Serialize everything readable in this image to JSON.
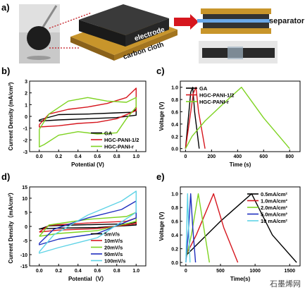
{
  "panel_labels": {
    "a": "a)",
    "b": "b)",
    "c": "c)",
    "d": "d)",
    "e": "e)"
  },
  "panel_a": {
    "electrode_label": "electrode",
    "carbon_cloth_label": "carbon cloth",
    "separator_label": "separator"
  },
  "watermark": "石墨烯网",
  "chart_data": [
    {
      "panel": "b",
      "type": "line",
      "xlabel": "Potential (V)",
      "ylabel": "Current Density (mA/cm²)",
      "xlim": [
        -0.1,
        1.1
      ],
      "ylim": [
        -3,
        3
      ],
      "xticks": [
        "0.0",
        "0.2",
        "0.4",
        "0.6",
        "0.8",
        "1.0"
      ],
      "yticks": [
        "-3",
        "-2",
        "-1",
        "0",
        "1",
        "2",
        "3"
      ],
      "legend_position": "bottom-right",
      "series": [
        {
          "name": "GA",
          "color": "#000000",
          "upper": [
            [
              0,
              -0.3
            ],
            [
              0.2,
              0.15
            ],
            [
              0.5,
              0.2
            ],
            [
              0.8,
              0.3
            ],
            [
              0.95,
              0.35
            ],
            [
              1.0,
              0.6
            ]
          ],
          "lower": [
            [
              1.0,
              0.1
            ],
            [
              0.8,
              -0.1
            ],
            [
              0.5,
              -0.2
            ],
            [
              0.2,
              -0.3
            ],
            [
              0,
              -0.4
            ]
          ]
        },
        {
          "name": "HGC-PANI-1/2",
          "color": "#d6161e",
          "upper": [
            [
              0,
              -0.7
            ],
            [
              0.1,
              0.2
            ],
            [
              0.3,
              0.6
            ],
            [
              0.5,
              0.8
            ],
            [
              0.7,
              1.1
            ],
            [
              0.9,
              1.6
            ],
            [
              1.0,
              2.4
            ]
          ],
          "lower": [
            [
              1.0,
              0.5
            ],
            [
              0.8,
              -0.2
            ],
            [
              0.6,
              -0.5
            ],
            [
              0.4,
              -0.6
            ],
            [
              0.2,
              -0.8
            ],
            [
              0,
              -0.9
            ]
          ]
        },
        {
          "name": "HGC-PANI-r",
          "color": "#7ed321",
          "upper": [
            [
              0,
              -1.1
            ],
            [
              0.1,
              0.2
            ],
            [
              0.3,
              1.3
            ],
            [
              0.5,
              1.6
            ],
            [
              0.7,
              1.3
            ],
            [
              0.9,
              1.2
            ],
            [
              1.0,
              1.6
            ]
          ],
          "lower": [
            [
              1.0,
              0.8
            ],
            [
              0.9,
              -0.2
            ],
            [
              0.8,
              -1.4
            ],
            [
              0.6,
              -1.5
            ],
            [
              0.4,
              -1.3
            ],
            [
              0.2,
              -1.6
            ],
            [
              0.05,
              -2.4
            ],
            [
              0,
              -2.6
            ]
          ]
        }
      ]
    },
    {
      "panel": "c",
      "type": "line",
      "xlabel": "Time (s)",
      "ylabel": "Voltage (V)",
      "xlim": [
        -40,
        880
      ],
      "ylim": [
        -0.05,
        1.1
      ],
      "xticks": [
        "0",
        "200",
        "400",
        "600",
        "800"
      ],
      "yticks": [
        "0.0",
        "0.2",
        "0.4",
        "0.6",
        "0.8",
        "1.0"
      ],
      "legend_position": "top-left",
      "series": [
        {
          "name": "GA",
          "color": "#000000",
          "points": [
            [
              0,
              0
            ],
            [
              40,
              0.92
            ],
            [
              55,
              1.0
            ],
            [
              70,
              0.6
            ],
            [
              105,
              0
            ]
          ]
        },
        {
          "name": "HGC-PANI-1/2",
          "color": "#d6161e",
          "points": [
            [
              0,
              0
            ],
            [
              60,
              0.9
            ],
            [
              80,
              1.0
            ],
            [
              100,
              0.6
            ],
            [
              150,
              0
            ]
          ]
        },
        {
          "name": "HGC-PANI-r",
          "color": "#7ed321",
          "points": [
            [
              0,
              0
            ],
            [
              50,
              0.2
            ],
            [
              150,
              0.45
            ],
            [
              300,
              0.75
            ],
            [
              430,
              1.0
            ],
            [
              600,
              0.5
            ],
            [
              800,
              0
            ]
          ]
        }
      ]
    },
    {
      "panel": "d",
      "type": "line",
      "xlabel": "Potential（V）",
      "ylabel": "Current Density（mA/cm²）",
      "xlim": [
        -0.1,
        1.1
      ],
      "ylim": [
        -14,
        14
      ],
      "xticks": [
        "0.0",
        "0.2",
        "0.4",
        "0.6",
        "0.8",
        "1.0"
      ],
      "yticks": [
        "-15",
        "-10",
        "-5",
        "0",
        "5",
        "10",
        "15"
      ],
      "legend_position": "bottom-right",
      "series": [
        {
          "name": "5mV/s",
          "color": "#000000",
          "upper": [
            [
              0,
              -1
            ],
            [
              0.1,
              0.2
            ],
            [
              0.5,
              0.6
            ],
            [
              0.9,
              0.9
            ],
            [
              1.0,
              1.5
            ]
          ],
          "lower": [
            [
              1.0,
              0.5
            ],
            [
              0.6,
              -0.4
            ],
            [
              0.2,
              -0.6
            ],
            [
              0,
              -0.9
            ]
          ]
        },
        {
          "name": "10mV/s",
          "color": "#d6161e",
          "upper": [
            [
              0,
              -2
            ],
            [
              0.1,
              0.4
            ],
            [
              0.5,
              1.2
            ],
            [
              0.9,
              1.8
            ],
            [
              1.0,
              3
            ]
          ],
          "lower": [
            [
              1.0,
              1
            ],
            [
              0.6,
              -0.8
            ],
            [
              0.2,
              -1.3
            ],
            [
              0,
              -2
            ]
          ]
        },
        {
          "name": "20mV/s",
          "color": "#7ed321",
          "upper": [
            [
              0,
              -3.5
            ],
            [
              0.1,
              0.5
            ],
            [
              0.5,
              2.5
            ],
            [
              0.9,
              3.5
            ],
            [
              1.0,
              5
            ]
          ],
          "lower": [
            [
              1.0,
              1.8
            ],
            [
              0.6,
              -1.5
            ],
            [
              0.2,
              -2.5
            ],
            [
              0,
              -3.5
            ]
          ]
        },
        {
          "name": "50mV/s",
          "color": "#1f2fbf",
          "upper": [
            [
              0,
              -6
            ],
            [
              0.15,
              -1
            ],
            [
              0.5,
              3
            ],
            [
              0.85,
              6
            ],
            [
              1.0,
              9
            ]
          ],
          "lower": [
            [
              1.0,
              3
            ],
            [
              0.6,
              -2.5
            ],
            [
              0.2,
              -4.5
            ],
            [
              0,
              -6.5
            ]
          ]
        },
        {
          "name": "100mV/s",
          "color": "#5fd3e6",
          "upper": [
            [
              0,
              -9
            ],
            [
              0.15,
              -3
            ],
            [
              0.5,
              4
            ],
            [
              0.85,
              9
            ],
            [
              1.0,
              12.5
            ]
          ],
          "lower": [
            [
              1.0,
              5
            ],
            [
              0.6,
              -4
            ],
            [
              0.2,
              -7.5
            ],
            [
              0,
              -9.5
            ]
          ]
        }
      ]
    },
    {
      "panel": "e",
      "type": "line",
      "xlabel": "Time(s)",
      "ylabel": "Voltage (V)",
      "xlim": [
        -80,
        1650
      ],
      "ylim": [
        -0.05,
        1.1
      ],
      "xticks": [
        "0",
        "500",
        "1000",
        "1500"
      ],
      "yticks": [
        "0.0",
        "0.2",
        "0.4",
        "0.6",
        "0.8",
        "1.0"
      ],
      "legend_position": "top-right",
      "series": [
        {
          "name": "0.5mA/cm²",
          "color": "#000000",
          "points": [
            [
              0,
              0.1
            ],
            [
              200,
              0.3
            ],
            [
              500,
              0.6
            ],
            [
              950,
              1.0
            ],
            [
              1250,
              0.4
            ],
            [
              1600,
              0
            ]
          ]
        },
        {
          "name": "1.0mA/cm²",
          "color": "#d6161e",
          "points": [
            [
              0,
              0.1
            ],
            [
              150,
              0.4
            ],
            [
              400,
              1.0
            ],
            [
              550,
              0.5
            ],
            [
              750,
              0
            ]
          ]
        },
        {
          "name": "2.0mA/cm²",
          "color": "#7ed321",
          "points": [
            [
              0,
              0.05
            ],
            [
              80,
              0.4
            ],
            [
              180,
              1.0
            ],
            [
              260,
              0.5
            ],
            [
              340,
              0
            ]
          ]
        },
        {
          "name": "5.0mA/cm²",
          "color": "#1f2fbf",
          "points": [
            [
              0,
              0
            ],
            [
              40,
              0.5
            ],
            [
              70,
              1.0
            ],
            [
              100,
              0.5
            ],
            [
              140,
              0
            ]
          ]
        },
        {
          "name": "10 mA/cm²",
          "color": "#5fd3e6",
          "points": [
            [
              0,
              0
            ],
            [
              15,
              0.6
            ],
            [
              25,
              1.0
            ],
            [
              40,
              0.5
            ],
            [
              60,
              0
            ]
          ]
        }
      ]
    }
  ]
}
